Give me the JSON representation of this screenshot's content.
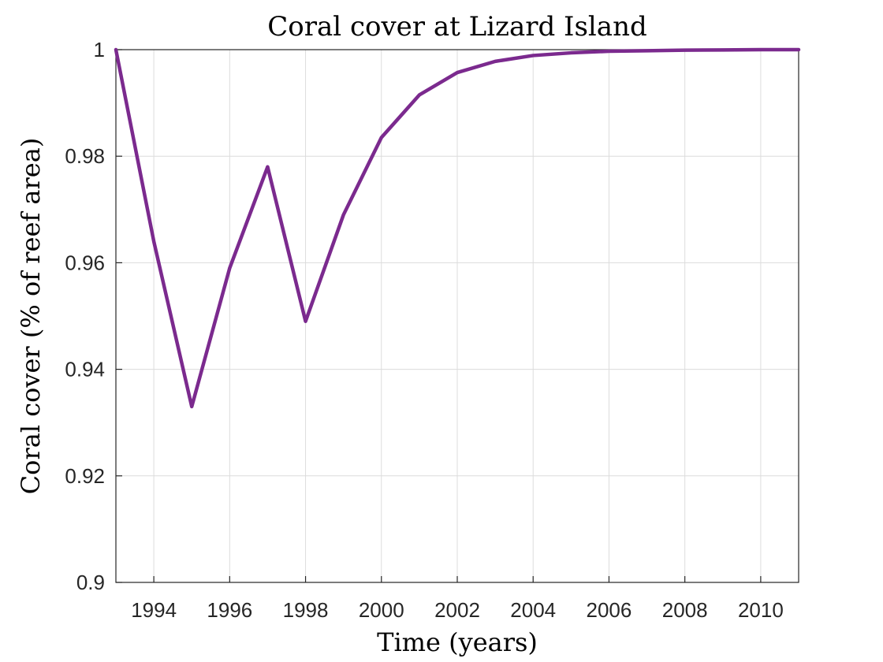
{
  "chart_data": {
    "type": "line",
    "title": "Coral cover at Lizard Island",
    "xlabel": "Time (years)",
    "ylabel": "Coral cover (% of reef area)",
    "xlim": [
      1993,
      2011
    ],
    "ylim": [
      0.9,
      1.0
    ],
    "grid": true,
    "xticks": [
      1994,
      1996,
      1998,
      2000,
      2002,
      2004,
      2006,
      2008,
      2010
    ],
    "xtick_labels": [
      "1994",
      "1996",
      "1998",
      "2000",
      "2002",
      "2004",
      "2006",
      "2008",
      "2010"
    ],
    "yticks": [
      0.9,
      0.92,
      0.94,
      0.96,
      0.98,
      1.0
    ],
    "ytick_labels": [
      "0.9",
      "0.92",
      "0.94",
      "0.96",
      "0.98",
      "1"
    ],
    "series": [
      {
        "color": "#7B2A8E",
        "x": [
          1993,
          1994,
          1995,
          1996,
          1997,
          1998,
          1999,
          2000,
          2001,
          2002,
          2003,
          2004,
          2005,
          2006,
          2007,
          2008,
          2009,
          2010,
          2011
        ],
        "y": [
          1.0,
          0.964,
          0.933,
          0.959,
          0.978,
          0.949,
          0.969,
          0.9835,
          0.9915,
          0.9957,
          0.9978,
          0.9989,
          0.9994,
          0.9997,
          0.9998,
          0.9999,
          0.99995,
          1.0,
          1.0
        ]
      }
    ]
  }
}
